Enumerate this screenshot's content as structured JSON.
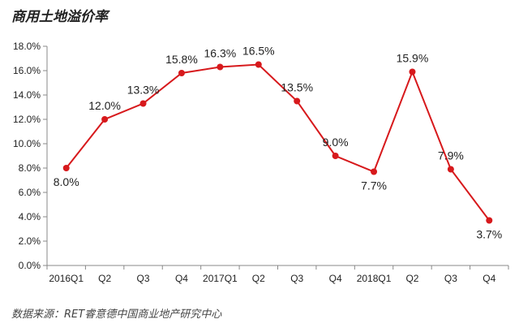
{
  "title": "商用土地溢价率",
  "source": "数据来源：RET睿意德中国商业地产研究中心",
  "colors": {
    "line": "#d7191c",
    "axis": "#888888"
  },
  "chart_data": {
    "type": "line",
    "title": "商用土地溢价率",
    "xlabel": "",
    "ylabel": "",
    "categories": [
      "2016Q1",
      "Q2",
      "Q3",
      "Q4",
      "2017Q1",
      "Q2",
      "Q3",
      "Q4",
      "2018Q1",
      "Q2",
      "Q3",
      "Q4"
    ],
    "values": [
      8.0,
      12.0,
      13.3,
      15.8,
      16.3,
      16.5,
      13.5,
      9.0,
      7.7,
      15.9,
      7.9,
      3.7
    ],
    "data_labels": [
      "8.0%",
      "12.0%",
      "13.3%",
      "15.8%",
      "16.3%",
      "16.5%",
      "13.5%",
      "9.0%",
      "7.7%",
      "15.9%",
      "7.9%",
      "3.7%"
    ],
    "ylim": [
      0,
      18
    ],
    "yticks": [
      "0.0%",
      "2.0%",
      "4.0%",
      "6.0%",
      "8.0%",
      "10.0%",
      "12.0%",
      "14.0%",
      "16.0%",
      "18.0%"
    ],
    "grid": false,
    "legend": "none"
  }
}
